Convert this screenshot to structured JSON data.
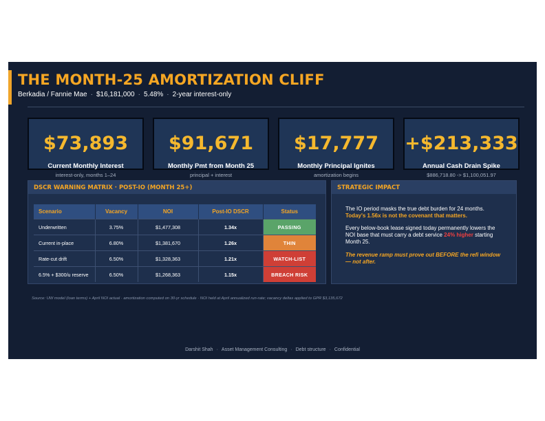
{
  "slide": {
    "title": "THE MONTH-25 AMORTIZATION CLIFF",
    "subtitle": {
      "lender": "Berkadia / Fannie Mae",
      "amount": "$16,181,000",
      "rate": "5.48%",
      "term": "2-year interest-only",
      "separator": "·"
    }
  },
  "kpis": [
    {
      "value": "$73,893",
      "label": "Current Monthly Interest",
      "sub": "interest-only, months 1–24"
    },
    {
      "value": "$91,671",
      "label": "Monthly Pmt from Month 25",
      "sub": "principal + interest"
    },
    {
      "value": "$17,777",
      "label": "Monthly Principal Ignites",
      "sub": "amortization begins"
    },
    {
      "value": "+$213,333",
      "label": "Annual Cash Drain Spike",
      "sub": "$886,718.80 -> $1,100,051.97"
    }
  ],
  "dscr_panel": {
    "title": "DSCR WARNING MATRIX  ·  POST-IO (MONTH 25+)",
    "headers": [
      "Scenario",
      "Vacancy",
      "NOI",
      "Post-IO DSCR",
      "Status"
    ],
    "rows": [
      {
        "scenario": "Underwritten",
        "vacancy": "3.75%",
        "noi": "$1,477,308",
        "dscr": "1.34x",
        "status": "PASSING",
        "status_color": "#5aa469"
      },
      {
        "scenario": "Current in-place",
        "vacancy": "6.80%",
        "noi": "$1,381,670",
        "dscr": "1.26x",
        "status": "THIN",
        "status_color": "#e0843a"
      },
      {
        "scenario": "Rate-cut drift",
        "vacancy": "6.50%",
        "noi": "$1,328,363",
        "dscr": "1.21x",
        "status": "WATCH-LIST",
        "status_color": "#cf3f36"
      },
      {
        "scenario": "6.5% + $300/u reserve",
        "vacancy": "6.50%",
        "noi": "$1,268,363",
        "dscr": "1.15x",
        "status": "BREACH RISK",
        "status_color": "#cf3f36"
      }
    ]
  },
  "impact_panel": {
    "title": "STRATEGIC IMPACT",
    "p1_text": "The IO period masks the true debt burden for 24 months.",
    "p1_highlight": "Today's 1.56x is not the covenant that matters.",
    "p2_pre": "Every below-book lease signed today permanently lowers the NOI base that must carry a debt service ",
    "p2_highlight": "24% higher",
    "p2_post": " starting Month 25.",
    "p3": "The revenue ramp must prove out BEFORE the refi window — not after."
  },
  "source_note": "Source: UW model (loan terms) + April NOI actual  ·  amortization computed on 30-yr schedule  ·  NOI held at April annualized run-rate; vacancy deltas applied to GPR $3,135,672",
  "footer": {
    "author": "Darshit Shah",
    "firm": "Asset Management Consulting",
    "topic": "Debt structure",
    "classification": "Confidential",
    "separator": "·"
  },
  "colors": {
    "background": "#131e33",
    "accent": "#f5a623",
    "panel": "#1e2f4c",
    "pass": "#5aa469",
    "thin": "#e0843a",
    "risk": "#cf3f36"
  }
}
